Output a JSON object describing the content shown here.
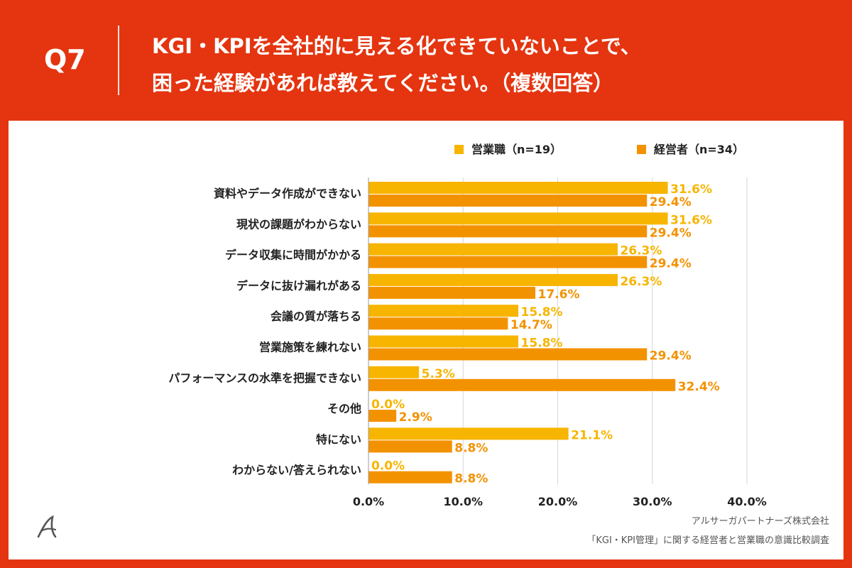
{
  "question": {
    "number": "Q7",
    "line1": "KGI・KPIを全社的に見える化できていないことで、",
    "line2": "困った経験があれば教えてください。（複数回答）"
  },
  "chart_data": {
    "type": "bar",
    "orientation": "horizontal",
    "categories": [
      "資料やデータ作成ができない",
      "現状の課題がわからない",
      "データ収集に時間がかかる",
      "データに抜け漏れがある",
      "会議の質が落ちる",
      "営業施策を練れない",
      "パフォーマンスの水準を把握できない",
      "その他",
      "特にない",
      "わからない/答えられない"
    ],
    "series": [
      {
        "name": "営業職（n=19）",
        "color": "#f7b500",
        "values": [
          31.6,
          31.6,
          26.3,
          26.3,
          15.8,
          15.8,
          5.3,
          0.0,
          21.1,
          0.0
        ]
      },
      {
        "name": "経営者（n=34）",
        "color": "#f39200",
        "values": [
          29.4,
          29.4,
          29.4,
          17.6,
          14.7,
          29.4,
          32.4,
          2.9,
          8.8,
          8.8
        ]
      }
    ],
    "xlim": [
      0,
      40
    ],
    "xticks": [
      "0.0%",
      "10.0%",
      "20.0%",
      "30.0%",
      "40.0%"
    ],
    "value_suffix": "%",
    "grid": true,
    "legend_position": "top"
  },
  "footer": {
    "company": "アルサーガパートナーズ株式会社",
    "survey": "「KGI・KPI管理」に関する経営者と営業職の意識比較調査"
  },
  "logo_color": "#555555"
}
